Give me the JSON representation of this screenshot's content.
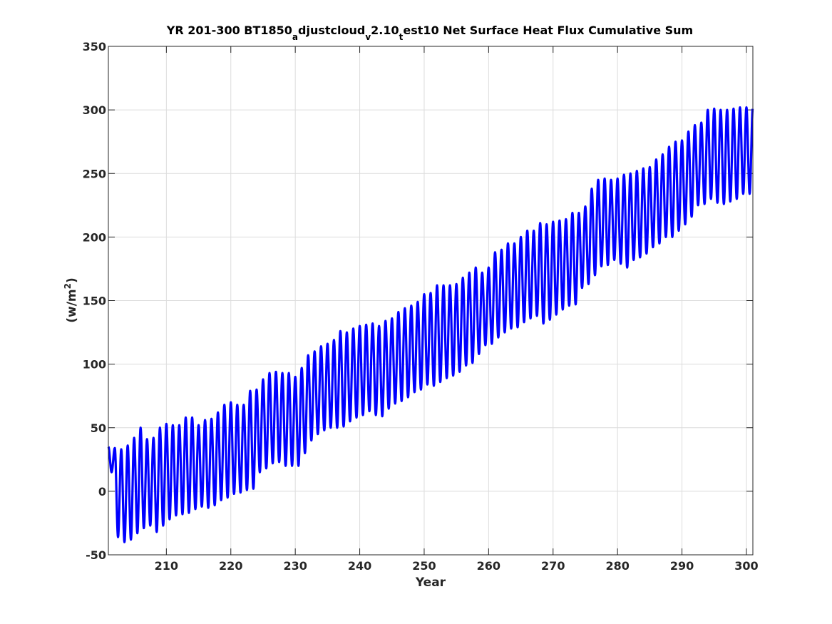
{
  "chart_data": {
    "type": "line",
    "title": {
      "t1": "YR 201-300 BT1850",
      "s1": "a",
      "t2": "djustcloud",
      "s2": "v",
      "t3": "2.10",
      "s3": "t",
      "t4": "est10 Net Surface Heat Flux  Cumulative Sum"
    },
    "xlabel": "Year",
    "ylabel": {
      "base": "(w/m",
      "sup": "2",
      "close": ")"
    },
    "xlim": [
      201,
      301
    ],
    "ylim": [
      -50,
      350
    ],
    "xticks": [
      210,
      220,
      230,
      240,
      250,
      260,
      270,
      280,
      290,
      300
    ],
    "yticks": [
      -50,
      0,
      50,
      100,
      150,
      200,
      250,
      300,
      350
    ],
    "grid": true,
    "line_color": "#0000ff",
    "series": [
      {
        "x_start": 201,
        "cycle_length_years": 1,
        "year_peaks": [
          35,
          34,
          33,
          36,
          42,
          50,
          41,
          42,
          50,
          53,
          52,
          52,
          58,
          58,
          52,
          56,
          57,
          62,
          68,
          70,
          68,
          68,
          79,
          80,
          88,
          93,
          94,
          93,
          93,
          90,
          97,
          107,
          110,
          114,
          116,
          119,
          126,
          125,
          128,
          130,
          131,
          132,
          130,
          134,
          136,
          141,
          144,
          146,
          149,
          155,
          156,
          162,
          162,
          162,
          163,
          168,
          172,
          176,
          172,
          176,
          188,
          190,
          195,
          195,
          200,
          205,
          205,
          211,
          210,
          212,
          213,
          214,
          219,
          219,
          224,
          238,
          245,
          246,
          245,
          246,
          249,
          250,
          252,
          254,
          255,
          261,
          265,
          271,
          275,
          276,
          283,
          288,
          290,
          300,
          301,
          300,
          300,
          301,
          302,
          302
        ],
        "year_troughs": [
          15,
          -36,
          -40,
          -38,
          -33,
          -29,
          -27,
          -32,
          -27,
          -22,
          -19,
          -18,
          -17,
          -14,
          -12,
          -13,
          -11,
          -7,
          -5,
          -2,
          -1,
          1,
          2,
          15,
          18,
          22,
          23,
          20,
          20,
          20,
          30,
          40,
          45,
          48,
          50,
          50,
          51,
          55,
          58,
          60,
          63,
          60,
          59,
          65,
          69,
          71,
          74,
          78,
          80,
          84,
          83,
          86,
          89,
          91,
          94,
          99,
          101,
          108,
          115,
          116,
          121,
          125,
          128,
          129,
          133,
          136,
          138,
          132,
          135,
          139,
          143,
          146,
          147,
          160,
          163,
          170,
          177,
          178,
          182,
          179,
          176,
          182,
          184,
          187,
          192,
          195,
          200,
          200,
          205,
          210,
          216,
          225,
          226,
          230,
          227,
          226,
          228,
          230,
          234,
          234
        ]
      }
    ]
  }
}
